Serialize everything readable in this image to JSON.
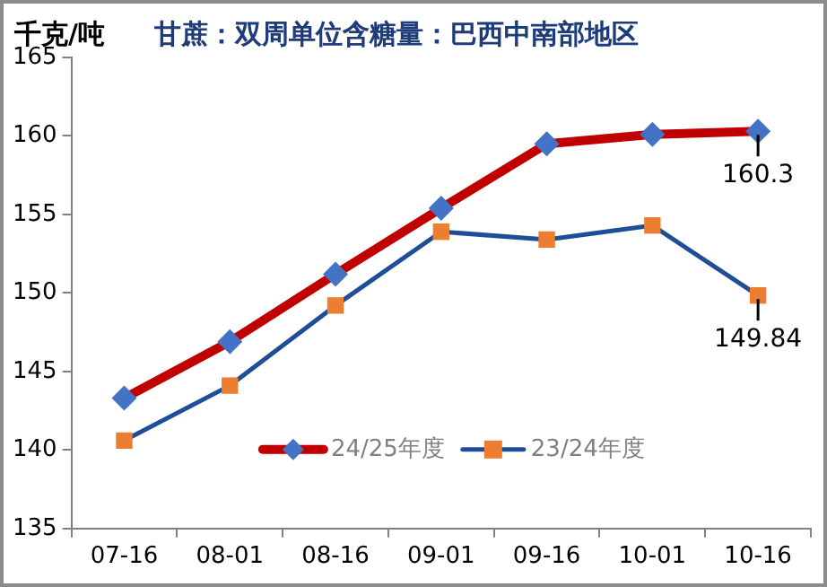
{
  "chart_data": {
    "type": "line",
    "title": "甘蔗：双周单位含糖量：巴西中南部地区",
    "ylabel": "千克/吨",
    "categories": [
      "07-16",
      "08-01",
      "08-16",
      "09-01",
      "09-16",
      "10-01",
      "10-16"
    ],
    "series": [
      {
        "name": "24/25年度",
        "color": "#c00000",
        "colors": [
          "#4472c4",
          "#4472c4",
          "#4472c4",
          "#4472c4",
          "#4472c4",
          "#4472c4",
          "#4472c4"
        ],
        "marker": "diamond",
        "values": [
          143.3,
          146.9,
          151.2,
          155.4,
          159.5,
          160.1,
          160.3
        ],
        "value_labels": [
          null,
          null,
          null,
          null,
          null,
          null,
          "160.3"
        ]
      },
      {
        "name": "23/24年度",
        "color": "#1f4e99",
        "colors": [
          "#ed7d31",
          "#ed7d31",
          "#ed7d31",
          "#ed7d31",
          "#ed7d31",
          "#ed7d31",
          "#ed7d31"
        ],
        "marker": "square",
        "values": [
          140.6,
          144.1,
          149.2,
          153.9,
          153.4,
          154.3,
          149.84
        ],
        "value_labels": [
          null,
          null,
          null,
          null,
          null,
          null,
          "149.84"
        ]
      }
    ],
    "ylim": [
      135,
      165
    ],
    "yticks": [
      135,
      140,
      145,
      150,
      155,
      160,
      165
    ],
    "grid": false,
    "legend": "bottom"
  }
}
